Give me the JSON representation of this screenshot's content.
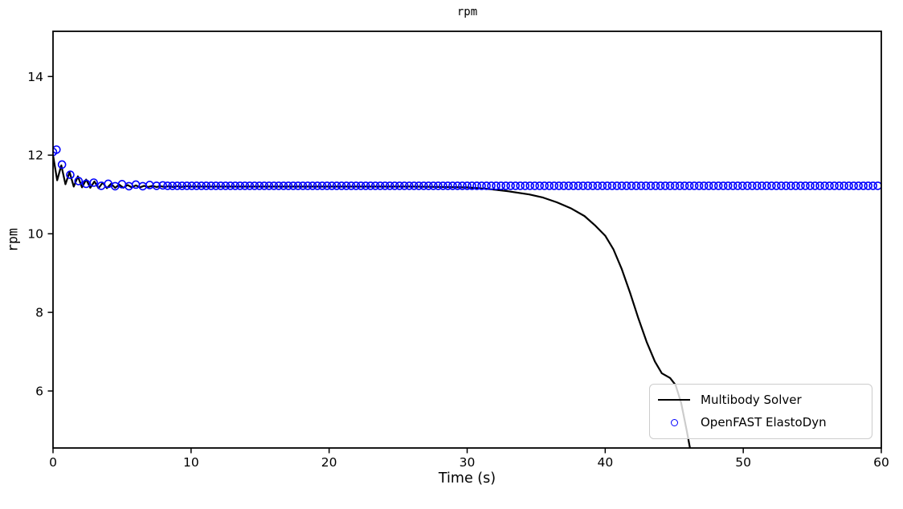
{
  "figure": {
    "title": "rpm",
    "xlabel": "Time (s)",
    "ylabel": "rpm",
    "background_color": "#ffffff",
    "axis_color": "#000000"
  },
  "legend": {
    "position": "lower right",
    "items": [
      {
        "label": "Multibody Solver",
        "marker": "line",
        "color": "#000000"
      },
      {
        "label": "OpenFAST ElastoDyn",
        "marker": "circle",
        "color": "#0000ff"
      }
    ]
  },
  "chart_data": {
    "type": "line",
    "title": "rpm",
    "xlabel": "Time (s)",
    "ylabel": "rpm",
    "xlim": [
      0,
      60
    ],
    "ylim": [
      4.55,
      15.15
    ],
    "xticks": [
      0,
      10,
      20,
      30,
      40,
      50,
      60
    ],
    "yticks": [
      6,
      8,
      10,
      12,
      14
    ],
    "grid": false,
    "legend_position": "lower right",
    "series": [
      {
        "name": "Multibody Solver",
        "type": "line",
        "color": "#000000",
        "linewidth": 2.2,
        "points": [
          [
            0,
            12.0
          ],
          [
            0.3,
            11.36
          ],
          [
            0.6,
            11.74
          ],
          [
            0.9,
            11.26
          ],
          [
            1.2,
            11.57
          ],
          [
            1.5,
            11.2
          ],
          [
            1.8,
            11.46
          ],
          [
            2.1,
            11.18
          ],
          [
            2.4,
            11.38
          ],
          [
            2.7,
            11.17
          ],
          [
            3.0,
            11.33
          ],
          [
            3.3,
            11.16
          ],
          [
            3.6,
            11.3
          ],
          [
            3.9,
            11.16
          ],
          [
            4.2,
            11.27
          ],
          [
            4.5,
            11.17
          ],
          [
            4.8,
            11.25
          ],
          [
            5.1,
            11.17
          ],
          [
            5.4,
            11.24
          ],
          [
            5.7,
            11.18
          ],
          [
            6.0,
            11.23
          ],
          [
            6.3,
            11.18
          ],
          [
            6.6,
            11.22
          ],
          [
            6.9,
            11.19
          ],
          [
            7.2,
            11.22
          ],
          [
            7.5,
            11.19
          ],
          [
            7.8,
            11.21
          ],
          [
            8.1,
            11.19
          ],
          [
            8.4,
            11.21
          ],
          [
            8.7,
            11.19
          ],
          [
            9.0,
            11.21
          ],
          [
            9.3,
            11.19
          ],
          [
            9.6,
            11.21
          ],
          [
            10,
            11.2
          ],
          [
            12,
            11.2
          ],
          [
            14,
            11.2
          ],
          [
            16,
            11.2
          ],
          [
            18,
            11.2
          ],
          [
            20,
            11.2
          ],
          [
            22,
            11.2
          ],
          [
            24,
            11.2
          ],
          [
            26,
            11.2
          ],
          [
            28,
            11.19
          ],
          [
            30,
            11.18
          ],
          [
            31.5,
            11.14
          ],
          [
            33,
            11.08
          ],
          [
            34.5,
            11.0
          ],
          [
            35.5,
            10.92
          ],
          [
            36.5,
            10.8
          ],
          [
            37.5,
            10.65
          ],
          [
            38.5,
            10.45
          ],
          [
            39.3,
            10.2
          ],
          [
            40,
            9.95
          ],
          [
            40.6,
            9.6
          ],
          [
            41.2,
            9.1
          ],
          [
            41.8,
            8.5
          ],
          [
            42.4,
            7.85
          ],
          [
            43,
            7.25
          ],
          [
            43.6,
            6.75
          ],
          [
            44.1,
            6.45
          ],
          [
            44.7,
            6.33
          ],
          [
            45.1,
            6.15
          ],
          [
            45.5,
            5.7
          ],
          [
            45.9,
            5.0
          ],
          [
            46.15,
            4.53
          ]
        ]
      },
      {
        "name": "OpenFAST ElastoDyn",
        "type": "scatter",
        "color": "#0000ff",
        "marker": "o",
        "marker_radius_px": 4.5,
        "marker_stroke_px": 1.6,
        "fill": "none",
        "points_transient": [
          [
            0,
            12.08
          ],
          [
            0.25,
            12.14
          ],
          [
            0.65,
            11.76
          ],
          [
            1.25,
            11.5
          ],
          [
            1.85,
            11.34
          ],
          [
            2.4,
            11.27
          ],
          [
            2.95,
            11.3
          ],
          [
            3.5,
            11.22
          ],
          [
            4.0,
            11.27
          ],
          [
            4.5,
            11.21
          ],
          [
            5.0,
            11.26
          ],
          [
            5.5,
            11.21
          ],
          [
            6.0,
            11.25
          ],
          [
            6.5,
            11.21
          ],
          [
            7.0,
            11.24
          ],
          [
            7.5,
            11.22
          ],
          [
            7.95,
            11.23
          ]
        ],
        "steady_markers": {
          "t_start": 8.3,
          "t_end": 60,
          "dt": 0.35,
          "value": 11.22
        }
      }
    ]
  }
}
